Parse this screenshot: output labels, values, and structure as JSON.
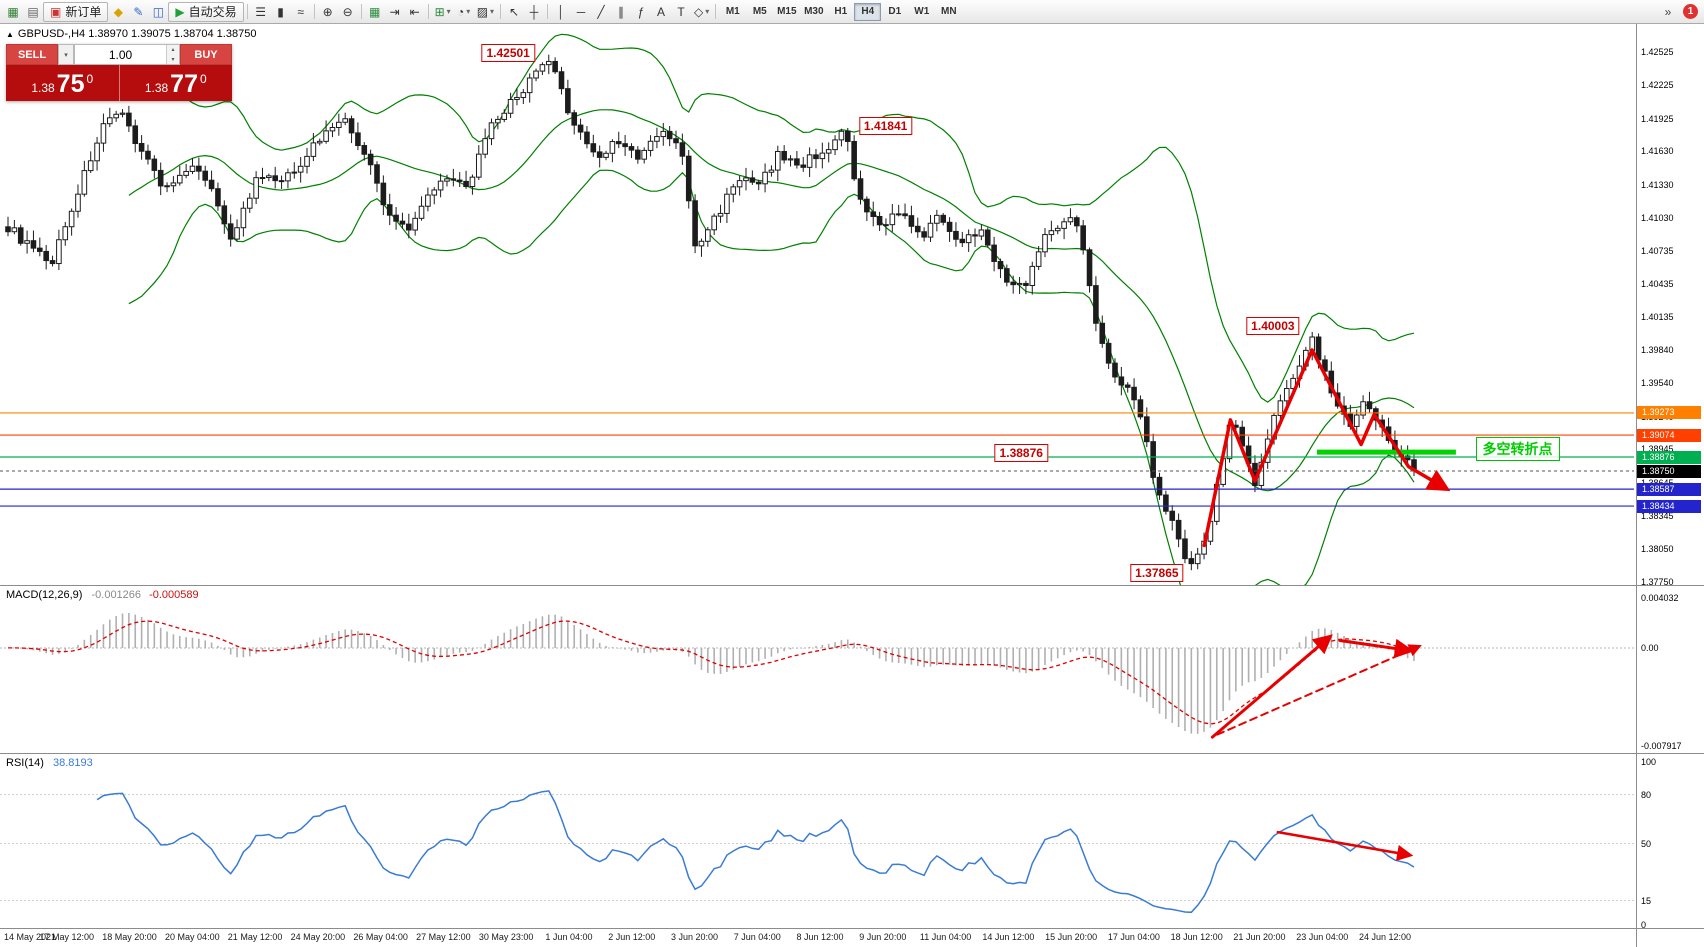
{
  "colors": {
    "bull": "#ffffff",
    "bear": "#1c1c1c",
    "wick": "#1c1c1c",
    "bollinger": "#008000",
    "macd_hist": "#b0b0b0",
    "macd_signal": "#e00000",
    "rsi_line": "#3a7bd5",
    "annotation": "#e80000",
    "segment_green": "#00d300",
    "trade_panel_red": "#b50d0d",
    "trade_button_red": "#d64541"
  },
  "toolbar": {
    "items": [
      {
        "name": "new-chart-button",
        "icon": "new-chart-icon",
        "glyph": "▦",
        "color": "#2e7d32"
      },
      {
        "name": "profiles-button",
        "icon": "profiles-icon",
        "glyph": "▤",
        "color": "#666666"
      },
      {
        "name": "new-order-button",
        "icon": "new-order-icon",
        "glyph": "▣",
        "color": "#cc3333",
        "label": "新订单"
      },
      {
        "name": "expert-advisors-button",
        "icon": "expert-advisors-icon",
        "glyph": "◆",
        "color": "#d9a300"
      },
      {
        "name": "scripts-button",
        "icon": "scripts-icon",
        "glyph": "✎",
        "color": "#3366cc"
      },
      {
        "name": "terminal-button",
        "icon": "terminal-icon",
        "glyph": "◫",
        "color": "#3366cc"
      },
      {
        "name": "autotrading-button",
        "icon": "autotrading-play-icon",
        "glyph": "▶",
        "color": "#22a038",
        "label": "自动交易"
      },
      {
        "sep": true
      },
      {
        "name": "bar-chart-button",
        "icon": "bar-chart-icon",
        "glyph": "☰",
        "color": "#333333"
      },
      {
        "name": "candlestick-chart-button",
        "icon": "candlestick-chart-icon",
        "glyph": "▮",
        "color": "#333333"
      },
      {
        "name": "line-chart-button",
        "icon": "line-chart-icon",
        "glyph": "≈",
        "color": "#333333"
      },
      {
        "sep": true
      },
      {
        "name": "zoom-in-button",
        "icon": "zoom-in-icon",
        "glyph": "⊕",
        "color": "#333333"
      },
      {
        "name": "zoom-out-button",
        "icon": "zoom-out-icon",
        "glyph": "⊖",
        "color": "#333333"
      },
      {
        "sep": true
      },
      {
        "name": "tile-windows-button",
        "icon": "tile-windows-icon",
        "glyph": "▦",
        "color": "#2a8a3a"
      },
      {
        "name": "auto-scroll-button",
        "icon": "auto-scroll-icon",
        "glyph": "⇥",
        "color": "#333333"
      },
      {
        "name": "chart-shift-button",
        "icon": "chart-shift-icon",
        "glyph": "⇤",
        "color": "#333333"
      },
      {
        "sep": true
      },
      {
        "name": "indicators-button",
        "icon": "indicators-icon",
        "glyph": "⊞",
        "color": "#2a8a3a",
        "caret": true
      },
      {
        "name": "periods-button",
        "icon": "periods-icon",
        "glyph": "◔",
        "color": "#333333",
        "caret": true
      },
      {
        "name": "templates-button",
        "icon": "templates-icon",
        "glyph": "▨",
        "color": "#333333",
        "caret": true
      },
      {
        "sep": true
      },
      {
        "name": "cursor-button",
        "icon": "cursor-icon",
        "glyph": "↖",
        "color": "#333333"
      },
      {
        "name": "crosshair-button",
        "icon": "crosshair-icon",
        "glyph": "┼",
        "color": "#333333"
      },
      {
        "sep": true
      },
      {
        "name": "vertical-line-button",
        "icon": "vertical-line-icon",
        "glyph": "│",
        "color": "#333333"
      },
      {
        "name": "horizontal-line-button",
        "icon": "horizontal-line-icon",
        "glyph": "─",
        "color": "#333333"
      },
      {
        "name": "trendline-button",
        "icon": "trendline-icon",
        "glyph": "╱",
        "color": "#333333"
      },
      {
        "name": "channel-button",
        "icon": "channel-icon",
        "glyph": "∥",
        "color": "#333333"
      },
      {
        "name": "fibonacci-button",
        "icon": "fibonacci-icon",
        "glyph": "ƒ",
        "color": "#333333"
      },
      {
        "name": "text-button",
        "icon": "text-icon",
        "glyph": "A",
        "color": "#333333"
      },
      {
        "name": "label-button",
        "icon": "label-icon",
        "glyph": "T",
        "color": "#333333"
      },
      {
        "name": "arrows-button",
        "icon": "arrows-icon",
        "glyph": "◇",
        "color": "#333333",
        "caret": true
      }
    ],
    "timeframes": [
      "M1",
      "M5",
      "M15",
      "M30",
      "H1",
      "H4",
      "D1",
      "W1",
      "MN"
    ],
    "active_timeframe": "H4",
    "overflow": "»",
    "badge": "1"
  },
  "trade_panel": {
    "sell_label": "SELL",
    "buy_label": "BUY",
    "volume": "1.00",
    "dropdown_icon": "▾",
    "spinner_up": "▴",
    "spinner_down": "▾",
    "sell_big": "1.38",
    "sell_pips": "75",
    "sell_point": "0",
    "buy_big": "1.38",
    "buy_pips": "77",
    "buy_point": "0"
  },
  "chart": {
    "symbol_marker": "▲",
    "symbol_line": "GBPUSD-,H4  1.38970 1.39075 1.38704 1.38750",
    "price_axis": {
      "labels": [
        "1.42525",
        "1.42225",
        "1.41925",
        "1.41630",
        "1.41330",
        "1.41030",
        "1.40735",
        "1.40435",
        "1.40135",
        "1.39840",
        "1.39540",
        "1.39240",
        "1.38945",
        "1.38645",
        "1.38345",
        "1.38050",
        "1.37750"
      ]
    },
    "time_axis": [
      "14 May 2021",
      "17 May 12:00",
      "18 May 20:00",
      "20 May 04:00",
      "21 May 12:00",
      "24 May 20:00",
      "26 May 04:00",
      "27 May 12:00",
      "30 May 23:00",
      "1 Jun 04:00",
      "2 Jun 12:00",
      "3 Jun 20:00",
      "7 Jun 04:00",
      "8 Jun 12:00",
      "9 Jun 20:00",
      "11 Jun 04:00",
      "14 Jun 12:00",
      "15 Jun 20:00",
      "17 Jun 04:00",
      "18 Jun 12:00",
      "21 Jun 20:00",
      "23 Jun 04:00",
      "24 Jun 12:00"
    ],
    "hlines": [
      {
        "price": 1.39273,
        "color": "#ff8000"
      },
      {
        "price": 1.39074,
        "color": "#ff4000"
      },
      {
        "price": 1.38876,
        "color": "#00b050"
      },
      {
        "price": 1.38587,
        "color": "#2424cc"
      },
      {
        "price": 1.38434,
        "color": "#2424cc"
      }
    ],
    "current_price_line": {
      "price": 1.3875
    },
    "tags": [
      {
        "text": "1.39273",
        "price": 1.39273,
        "bg": "#ff8000"
      },
      {
        "text": "1.39074",
        "price": 1.39074,
        "bg": "#ff4000"
      },
      {
        "text": "1.38876",
        "price": 1.38876,
        "bg": "#00b050"
      },
      {
        "text": "1.38750",
        "price": 1.3875,
        "bg": "#000000"
      },
      {
        "text": "1.38587",
        "price": 1.38587,
        "bg": "#2424cc"
      },
      {
        "text": "1.38434",
        "price": 1.38434,
        "bg": "#2424cc"
      }
    ],
    "callouts": [
      {
        "text": "1.42501",
        "xf": 0.311,
        "price": 1.4252
      },
      {
        "text": "1.41841",
        "xf": 0.542,
        "price": 1.4186
      },
      {
        "text": "1.40003",
        "xf": 0.779,
        "price": 1.4006
      },
      {
        "text": "1.38876",
        "xf": 0.625,
        "price": 1.3891
      },
      {
        "text": "1.37865",
        "xf": 0.708,
        "price": 1.3783
      }
    ],
    "turning_point": {
      "text": "多空转折点",
      "xf": 0.903,
      "price": 1.3896
    },
    "green_segment": {
      "x1f": 0.806,
      "x2f": 0.891,
      "price": 1.3892
    }
  },
  "chart_data": {
    "type": "candlestick",
    "symbol": "GBPUSD-",
    "timeframe": "H4",
    "ohlc_label": {
      "open": "1.38970",
      "high": "1.39075",
      "low": "1.38704",
      "close": "1.38750"
    },
    "ylim": [
      1.3775,
      1.42525
    ],
    "num_candles": 222,
    "bollinger": {
      "period": 20,
      "deviations": 2
    },
    "price_path": [
      [
        0,
        1.4095
      ],
      [
        0.03,
        1.406
      ],
      [
        0.067,
        1.4185
      ],
      [
        0.081,
        1.4195
      ],
      [
        0.111,
        1.413
      ],
      [
        0.137,
        1.415
      ],
      [
        0.159,
        1.4085
      ],
      [
        0.178,
        1.414
      ],
      [
        0.196,
        1.4135
      ],
      [
        0.222,
        1.4175
      ],
      [
        0.237,
        1.4195
      ],
      [
        0.256,
        1.4155
      ],
      [
        0.27,
        1.4105
      ],
      [
        0.285,
        1.4095
      ],
      [
        0.307,
        1.414
      ],
      [
        0.326,
        1.413
      ],
      [
        0.344,
        1.4185
      ],
      [
        0.363,
        1.4215
      ],
      [
        0.385,
        1.4245
      ],
      [
        0.4,
        1.4195
      ],
      [
        0.419,
        1.4155
      ],
      [
        0.433,
        1.4175
      ],
      [
        0.448,
        1.4155
      ],
      [
        0.463,
        1.418
      ],
      [
        0.478,
        1.417
      ],
      [
        0.489,
        1.4075
      ],
      [
        0.504,
        1.4105
      ],
      [
        0.519,
        1.414
      ],
      [
        0.533,
        1.413
      ],
      [
        0.548,
        1.416
      ],
      [
        0.563,
        1.415
      ],
      [
        0.581,
        1.4165
      ],
      [
        0.596,
        1.418
      ],
      [
        0.604,
        1.412
      ],
      [
        0.619,
        1.4095
      ],
      [
        0.633,
        1.411
      ],
      [
        0.648,
        1.4085
      ],
      [
        0.663,
        1.4105
      ],
      [
        0.678,
        1.408
      ],
      [
        0.693,
        1.4095
      ],
      [
        0.707,
        1.405
      ],
      [
        0.722,
        1.404
      ],
      [
        0.737,
        1.4085
      ],
      [
        0.752,
        1.4105
      ],
      [
        0.763,
        1.409
      ],
      [
        0.774,
        1.401
      ],
      [
        0.785,
        1.396
      ],
      [
        0.796,
        1.395
      ],
      [
        0.807,
        1.392
      ],
      [
        0.815,
        1.387
      ],
      [
        0.826,
        1.3835
      ],
      [
        0.837,
        1.38
      ],
      [
        0.844,
        1.379
      ],
      [
        0.852,
        1.3815
      ],
      [
        0.863,
        1.388
      ],
      [
        0.87,
        1.3925
      ],
      [
        0.878,
        1.39
      ],
      [
        0.887,
        1.386
      ],
      [
        0.896,
        1.3905
      ],
      [
        0.907,
        1.3945
      ],
      [
        0.919,
        1.3975
      ],
      [
        0.928,
        1.3995
      ],
      [
        0.937,
        1.396
      ],
      [
        0.947,
        1.393
      ],
      [
        0.956,
        1.391
      ],
      [
        0.963,
        1.3935
      ],
      [
        0.972,
        1.3925
      ],
      [
        0.981,
        1.3905
      ],
      [
        0.991,
        1.389
      ],
      [
        1,
        1.3875
      ]
    ],
    "pins": [
      {
        "f": 0.385,
        "k": "h",
        "v": 1.42501
      },
      {
        "f": 0.596,
        "k": "h",
        "v": 1.41841
      },
      {
        "f": 0.928,
        "k": "h",
        "v": 1.40003
      },
      {
        "f": 0.844,
        "k": "l",
        "v": 1.37865
      },
      {
        "f": 1,
        "k": "c",
        "v": 1.3875
      }
    ]
  },
  "macd": {
    "name": "MACD(12,26,9)",
    "value1": "-0.001266",
    "value2": "-0.000589",
    "range": [
      -0.007917,
      0.004032
    ],
    "params": {
      "fast": 12,
      "slow": 26,
      "signal": 9
    },
    "scale": [
      {
        "text": "0.004032",
        "v": 0.004032
      },
      {
        "text": "0.00",
        "v": 0
      },
      {
        "text": "-0.007917",
        "v": -0.007917
      }
    ]
  },
  "rsi": {
    "name": "RSI(14)",
    "value": "38.8193",
    "period": 14,
    "level_lines": [
      80,
      50,
      15
    ],
    "scale": [
      {
        "text": "100",
        "v": 100
      },
      {
        "text": "80",
        "v": 80
      },
      {
        "text": "50",
        "v": 50
      },
      {
        "text": "15",
        "v": 15
      },
      {
        "text": "0",
        "v": 0
      }
    ]
  },
  "annotations": {
    "price_zigzag": [
      [
        0.737,
        1.3808
      ],
      [
        0.753,
        1.3921
      ],
      [
        0.768,
        1.3866
      ],
      [
        0.803,
        1.3984
      ],
      [
        0.833,
        1.3899
      ],
      [
        0.841,
        1.3926
      ],
      [
        0.862,
        1.3879
      ],
      [
        0.884,
        1.386
      ]
    ],
    "macd_arrow_up": [
      [
        0.742,
        -0.0072
      ],
      [
        0.813,
        0.0008
      ]
    ],
    "macd_arrow_down": [
      [
        0.82,
        0.0006
      ],
      [
        0.862,
        -0.0002
      ]
    ],
    "macd_arrow_dashed": [
      [
        0.745,
        -0.007
      ],
      [
        0.868,
        0.0001
      ]
    ],
    "rsi_arrow": [
      [
        0.782,
        57
      ],
      [
        0.862,
        43
      ]
    ]
  }
}
